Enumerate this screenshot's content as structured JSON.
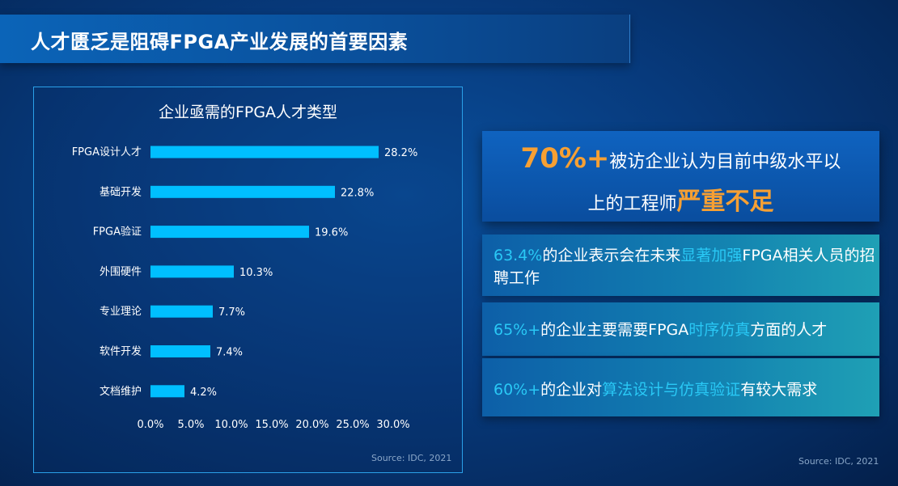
{
  "title": "人才匮乏是阻碍FPGA产业发展的首要因素",
  "chart_data": {
    "type": "bar",
    "orientation": "horizontal",
    "title": "企业亟需的FPGA人才类型",
    "categories": [
      "FPGA设计人才",
      "基础开发",
      "FPGA验证",
      "外围硬件",
      "专业理论",
      "软件开发",
      "文档维护"
    ],
    "values": [
      28.2,
      22.8,
      19.6,
      10.3,
      7.7,
      7.4,
      4.2
    ],
    "value_labels": [
      "28.2%",
      "22.8%",
      "19.6%",
      "10.3%",
      "7.7%",
      "7.4%",
      "4.2%"
    ],
    "xlim": [
      0,
      30
    ],
    "x_ticks": [
      "0.0%",
      "5.0%",
      "10.0%",
      "15.0%",
      "20.0%",
      "25.0%",
      "30.0%"
    ],
    "grid": false,
    "bar_color": "#00bfff",
    "source": "Source: IDC, 2021"
  },
  "hero": {
    "big": "70%+",
    "line1_rest": "被访企业认为目前中级水平以",
    "line2_pre": "上的工程师",
    "line2_strong": "严重不足"
  },
  "stats": {
    "s1": {
      "pct": "63.4%",
      "a": "的企业表示会在未来",
      "hl": "显著加强",
      "b": "FPGA相关人员的招聘工作"
    },
    "s2": {
      "pct": "65%+",
      "a": "的企业主要需要FPGA",
      "hl": "时序仿真",
      "b": "方面的人才"
    },
    "s3": {
      "pct": "60%+",
      "a": "的企业对",
      "hl": "算法设计与仿真验证",
      "b": "有较大需求"
    }
  },
  "source_right": "Source: IDC, 2021",
  "colors": {
    "accent_orange": "#f7a033",
    "accent_cyan": "#29c8f5",
    "bar": "#00bfff"
  }
}
